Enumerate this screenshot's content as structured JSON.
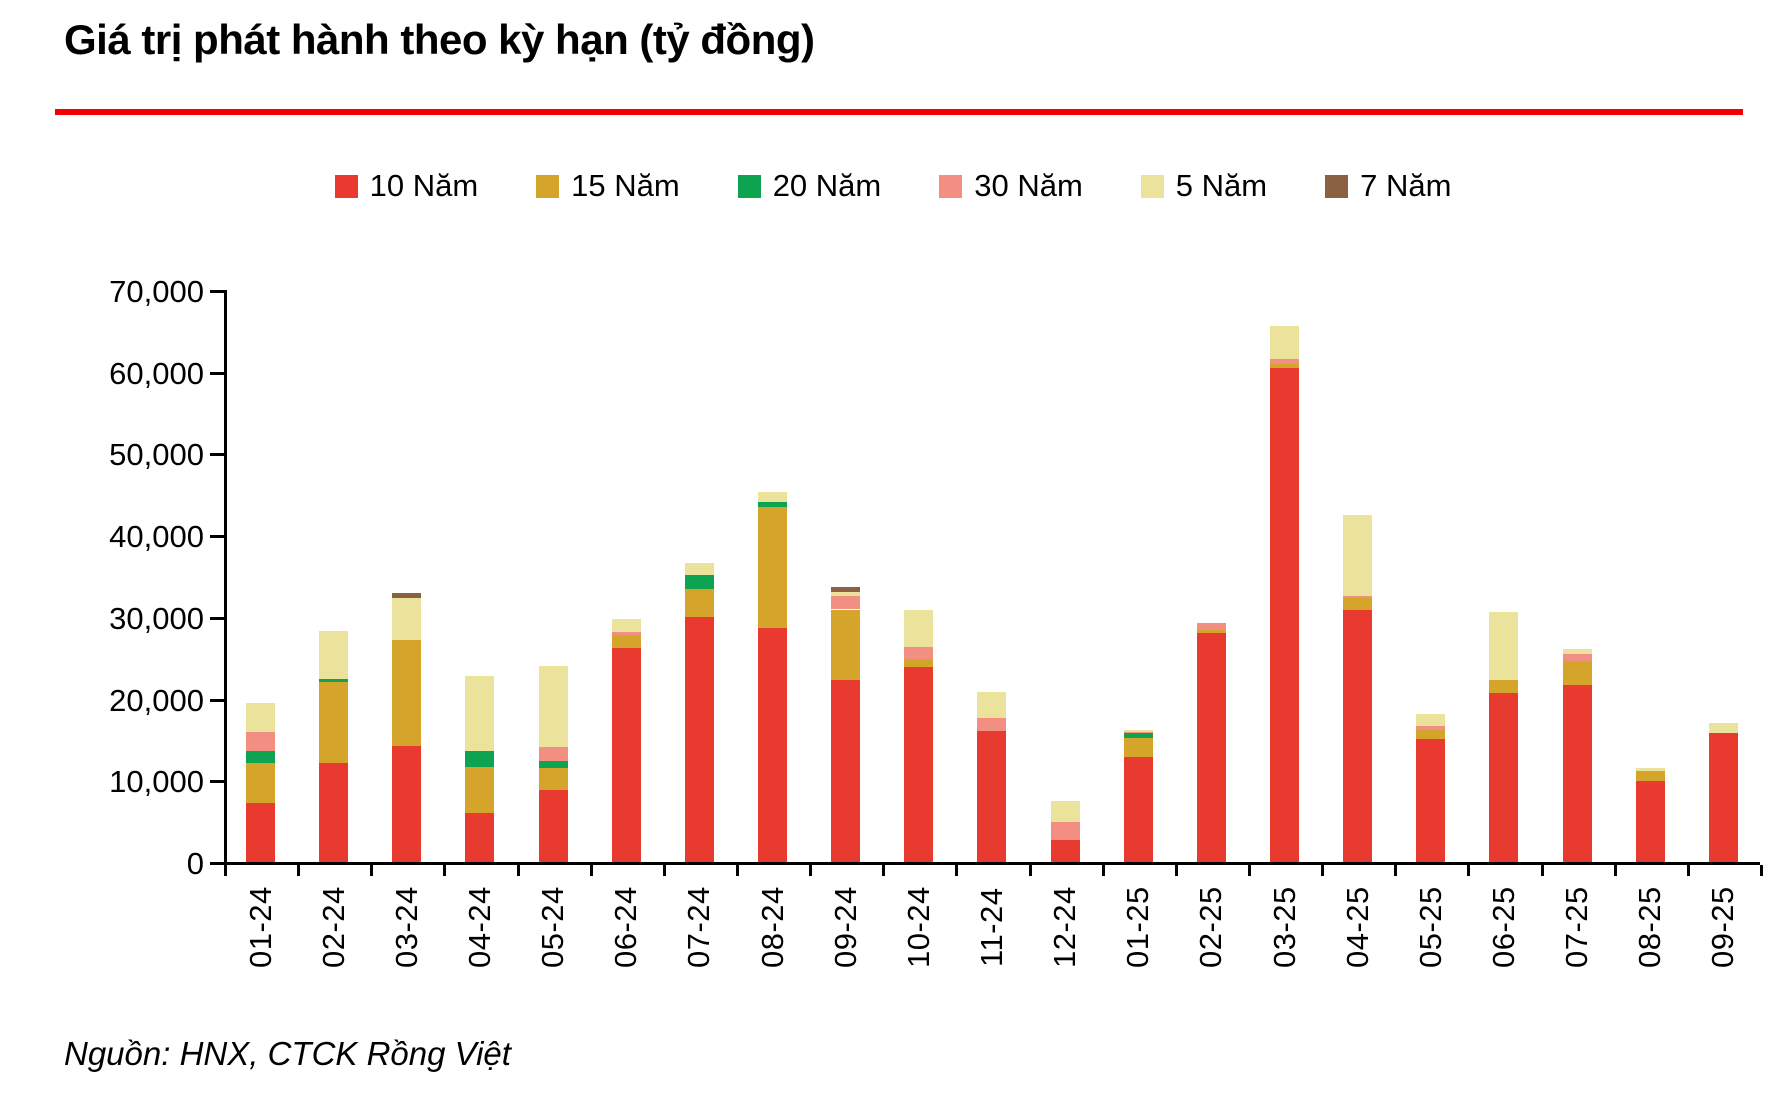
{
  "title": "Giá trị phát hành theo kỳ hạn (tỷ đồng)",
  "source": "Nguồn: HNX, CTCK Rồng Việt",
  "colors": {
    "title_rule": "#F40000",
    "axis": "#000000",
    "series_10y": "#E83A2F",
    "series_15y": "#D5A42B",
    "series_20y": "#0DA350",
    "series_30y": "#F28E82",
    "series_5y": "#EBE39B",
    "series_7y": "#8A6142"
  },
  "chart_data": {
    "type": "bar",
    "stacked": true,
    "title": "Giá trị phát hành theo kỳ hạn (tỷ đồng)",
    "xlabel": "",
    "ylabel": "",
    "ylim": [
      0,
      70000
    ],
    "grid": false,
    "legend_position": "top",
    "ytick_values": [
      0,
      10000,
      20000,
      30000,
      40000,
      50000,
      60000,
      70000
    ],
    "ytick_labels": [
      "0",
      "10,000",
      "20,000",
      "30,000",
      "40,000",
      "50,000",
      "60,000",
      "70,000"
    ],
    "categories": [
      "01-24",
      "02-24",
      "03-24",
      "04-24",
      "05-24",
      "06-24",
      "07-24",
      "08-24",
      "09-24",
      "10-24",
      "11-24",
      "12-24",
      "01-25",
      "02-25",
      "03-25",
      "04-25",
      "05-25",
      "06-25",
      "07-25",
      "08-25",
      "09-25"
    ],
    "series": [
      {
        "name": "10 Năm",
        "color": "#E83A2F",
        "values": [
          7200,
          12100,
          14200,
          6000,
          8800,
          26200,
          30000,
          28600,
          22300,
          23900,
          16000,
          2700,
          12900,
          28000,
          60500,
          30800,
          15000,
          20700,
          21700,
          9900,
          15800
        ]
      },
      {
        "name": "15 Năm",
        "color": "#D5A42B",
        "values": [
          4900,
          9900,
          13000,
          5600,
          2700,
          1600,
          3400,
          14800,
          8600,
          900,
          0,
          0,
          2300,
          400,
          500,
          1500,
          1100,
          1600,
          2900,
          1200,
          0
        ]
      },
      {
        "name": "20 Năm",
        "color": "#0DA350",
        "values": [
          1500,
          400,
          0,
          2000,
          900,
          0,
          1700,
          700,
          0,
          0,
          0,
          0,
          600,
          0,
          0,
          0,
          0,
          0,
          0,
          0,
          0
        ]
      },
      {
        "name": "30 Năm",
        "color": "#F28E82",
        "values": [
          2300,
          0,
          0,
          0,
          1700,
          300,
          0,
          0,
          1600,
          1500,
          1600,
          2200,
          100,
          900,
          500,
          300,
          600,
          0,
          800,
          0,
          0
        ]
      },
      {
        "name": "5 Năm",
        "color": "#EBE39B",
        "values": [
          3600,
          5900,
          5100,
          9200,
          9900,
          1600,
          1500,
          1200,
          600,
          4500,
          3200,
          2600,
          200,
          0,
          4100,
          9900,
          1400,
          8300,
          700,
          400,
          1200
        ]
      },
      {
        "name": "7 Năm",
        "color": "#8A6142",
        "values": [
          0,
          0,
          600,
          0,
          0,
          0,
          0,
          0,
          500,
          0,
          0,
          0,
          0,
          0,
          0,
          0,
          0,
          0,
          0,
          0,
          0
        ]
      }
    ]
  }
}
